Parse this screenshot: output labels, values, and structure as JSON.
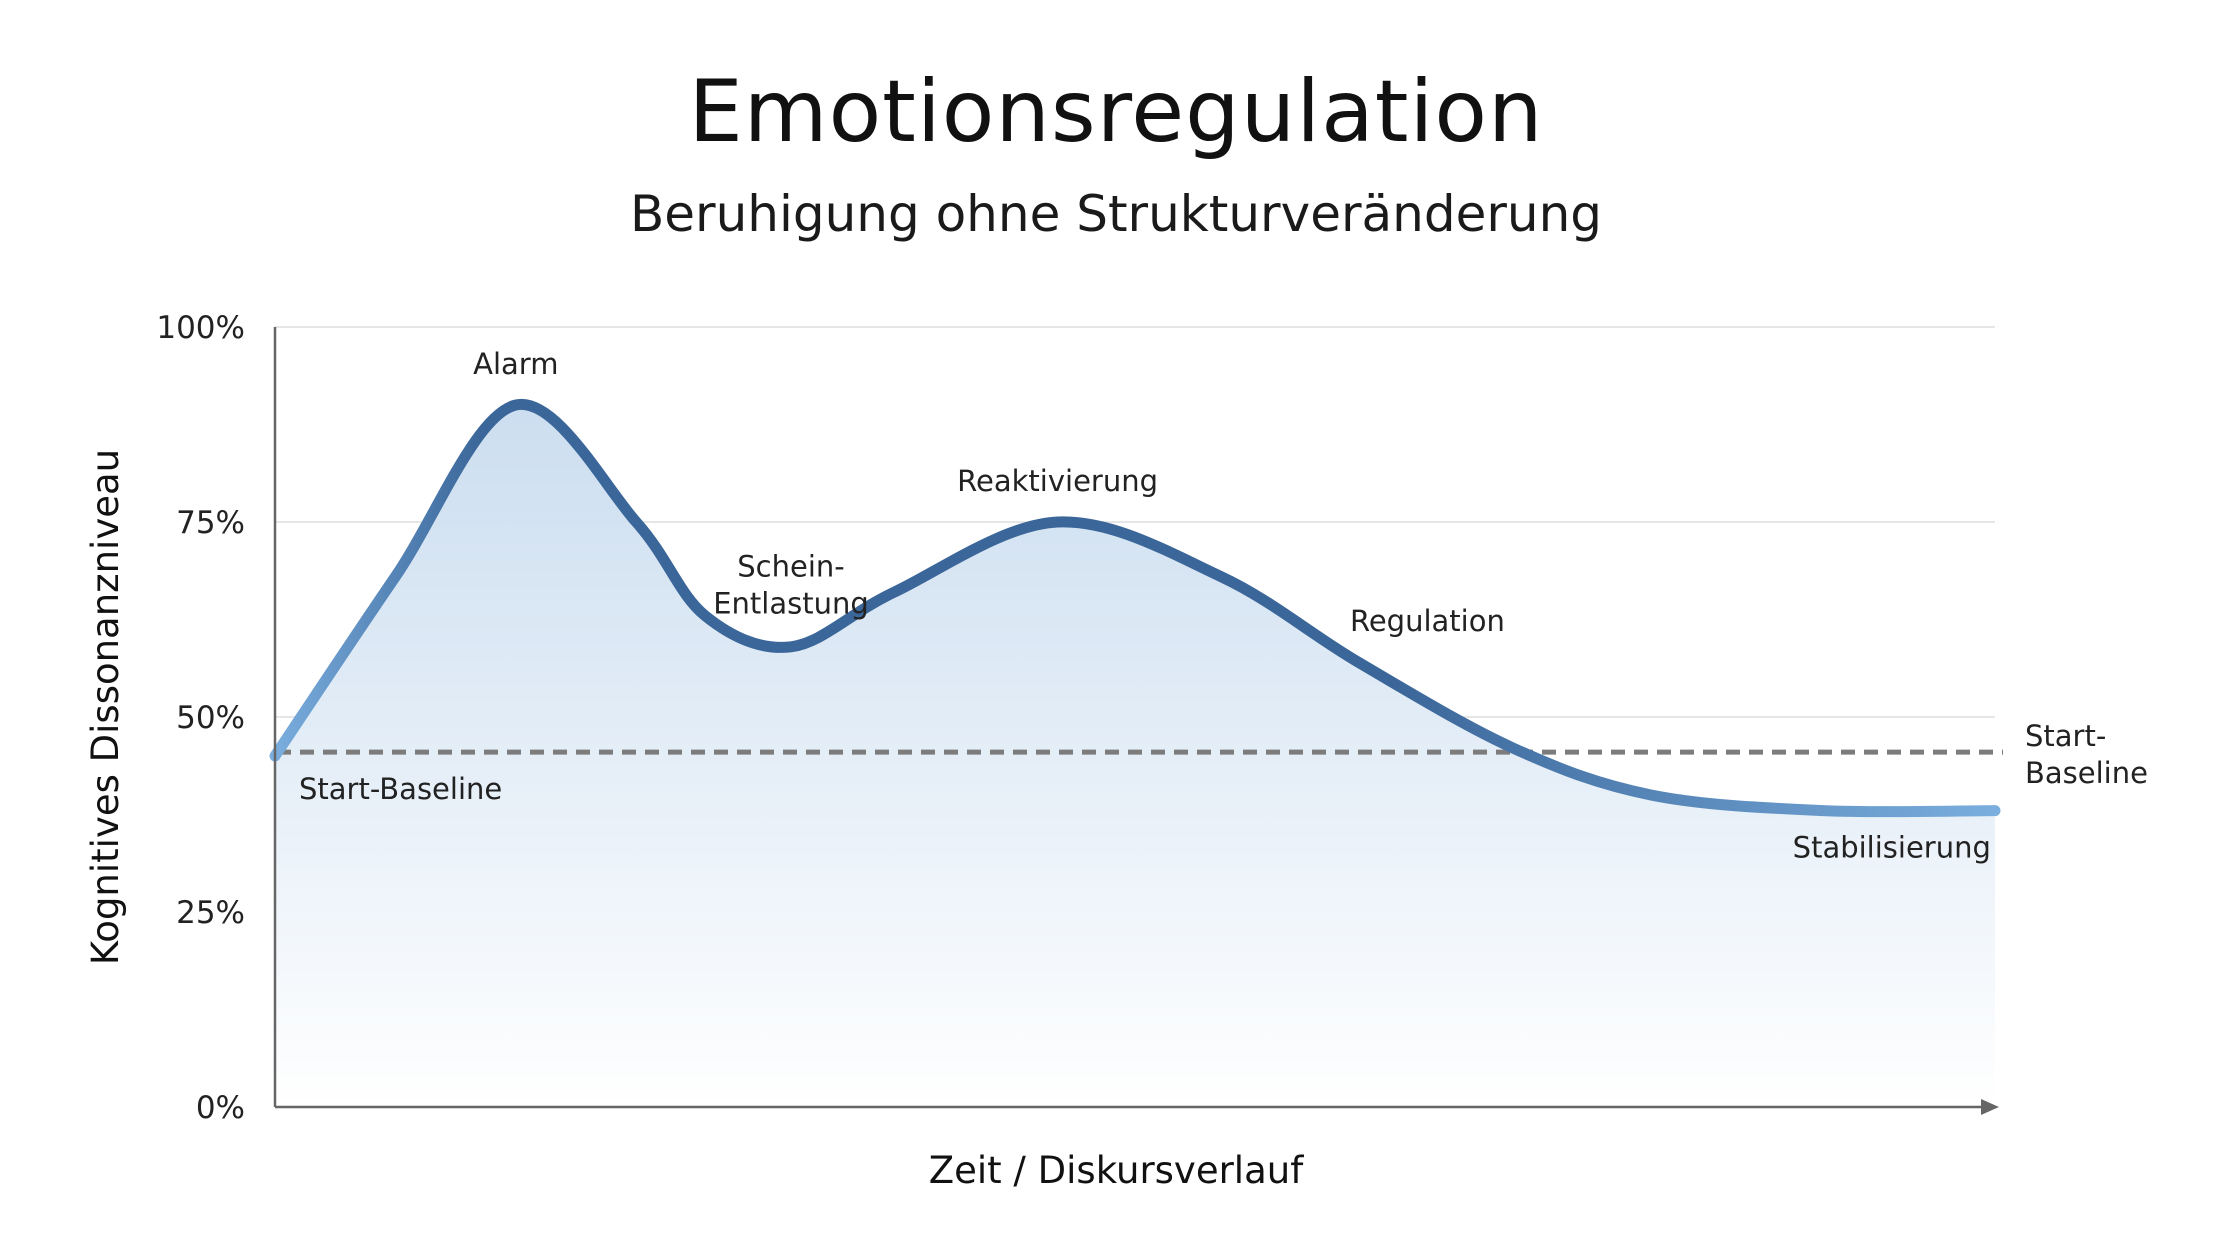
{
  "chart_data": {
    "type": "area",
    "title": "Emotionsregulation",
    "subtitle": "Beruhigung ohne Strukturveränderung",
    "xlabel": "Zeit / Diskursverlauf",
    "ylabel": "Kognitives Dissonanzniveau",
    "ylim": [
      0,
      100
    ],
    "yticks": [
      "0%",
      "25%",
      "50%",
      "75%",
      "100%"
    ],
    "ytick_values": [
      0,
      25,
      50,
      75,
      100
    ],
    "xlim": [
      0,
      100
    ],
    "grid": true,
    "series": [
      {
        "points": [
          {
            "x": 0,
            "y": 45
          },
          {
            "x": 7,
            "y": 68
          },
          {
            "x": 14,
            "y": 90
          },
          {
            "x": 21,
            "y": 75
          },
          {
            "x": 25,
            "y": 63
          },
          {
            "x": 30,
            "y": 59
          },
          {
            "x": 36,
            "y": 66
          },
          {
            "x": 45.5,
            "y": 75
          },
          {
            "x": 55,
            "y": 68
          },
          {
            "x": 63,
            "y": 57
          },
          {
            "x": 72,
            "y": 46
          },
          {
            "x": 80,
            "y": 40
          },
          {
            "x": 90,
            "y": 38
          },
          {
            "x": 100,
            "y": 38
          }
        ]
      }
    ],
    "baseline": {
      "y": 45.5,
      "label_left": "Start-Baseline",
      "label_right_lines": [
        "Start-",
        "Baseline"
      ]
    },
    "annotations": [
      {
        "lines": [
          "Alarm"
        ],
        "x": 14,
        "y": 94
      },
      {
        "lines": [
          "Schein-",
          "Entlastung"
        ],
        "x": 30,
        "y": 68
      },
      {
        "lines": [
          "Reaktivierung"
        ],
        "x": 45.5,
        "y": 79
      },
      {
        "lines": [
          "Regulation"
        ],
        "x": 67,
        "y": 61
      },
      {
        "lines": [
          "Stabilisierung"
        ],
        "x": 94,
        "y": 32
      }
    ],
    "colors": {
      "line_light": "#7aaede",
      "line_dark": "#3b6699",
      "fill_top": "#c9dcef",
      "fill_bottom": "#ffffff",
      "baseline": "#7c7c7c",
      "grid": "#dddddd",
      "axis": "#666666"
    }
  }
}
